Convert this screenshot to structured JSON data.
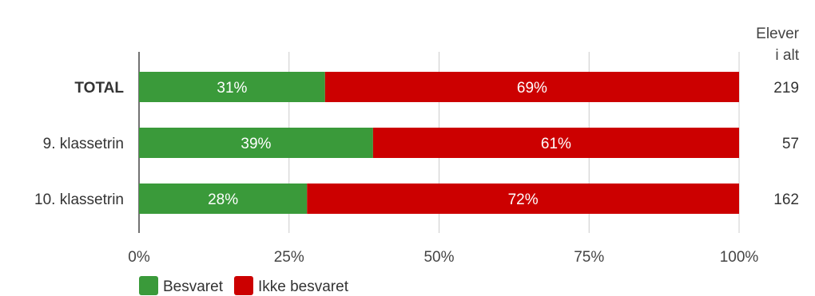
{
  "chart_data": {
    "type": "bar",
    "orientation": "horizontal",
    "stacked": true,
    "categories": [
      "TOTAL",
      "9. klassetrin",
      "10. klassetrin"
    ],
    "series": [
      {
        "name": "Besvaret",
        "values": [
          31,
          39,
          28
        ],
        "labels": [
          "31%",
          "39%",
          "28%"
        ]
      },
      {
        "name": "Ikke besvaret",
        "values": [
          69,
          61,
          72
        ],
        "labels": [
          "69%",
          "61%",
          "72%"
        ]
      }
    ],
    "totals": {
      "header": [
        "Elever",
        "i alt"
      ],
      "values": [
        "219",
        "57",
        "162"
      ]
    },
    "x_ticks": [
      "0%",
      "25%",
      "50%",
      "75%",
      "100%"
    ],
    "xlim": [
      0,
      100
    ],
    "grid": true,
    "legend_position": "bottom-left",
    "colors": {
      "Besvaret": "#3a9a3a",
      "Ikke besvaret": "#cc0000"
    }
  }
}
